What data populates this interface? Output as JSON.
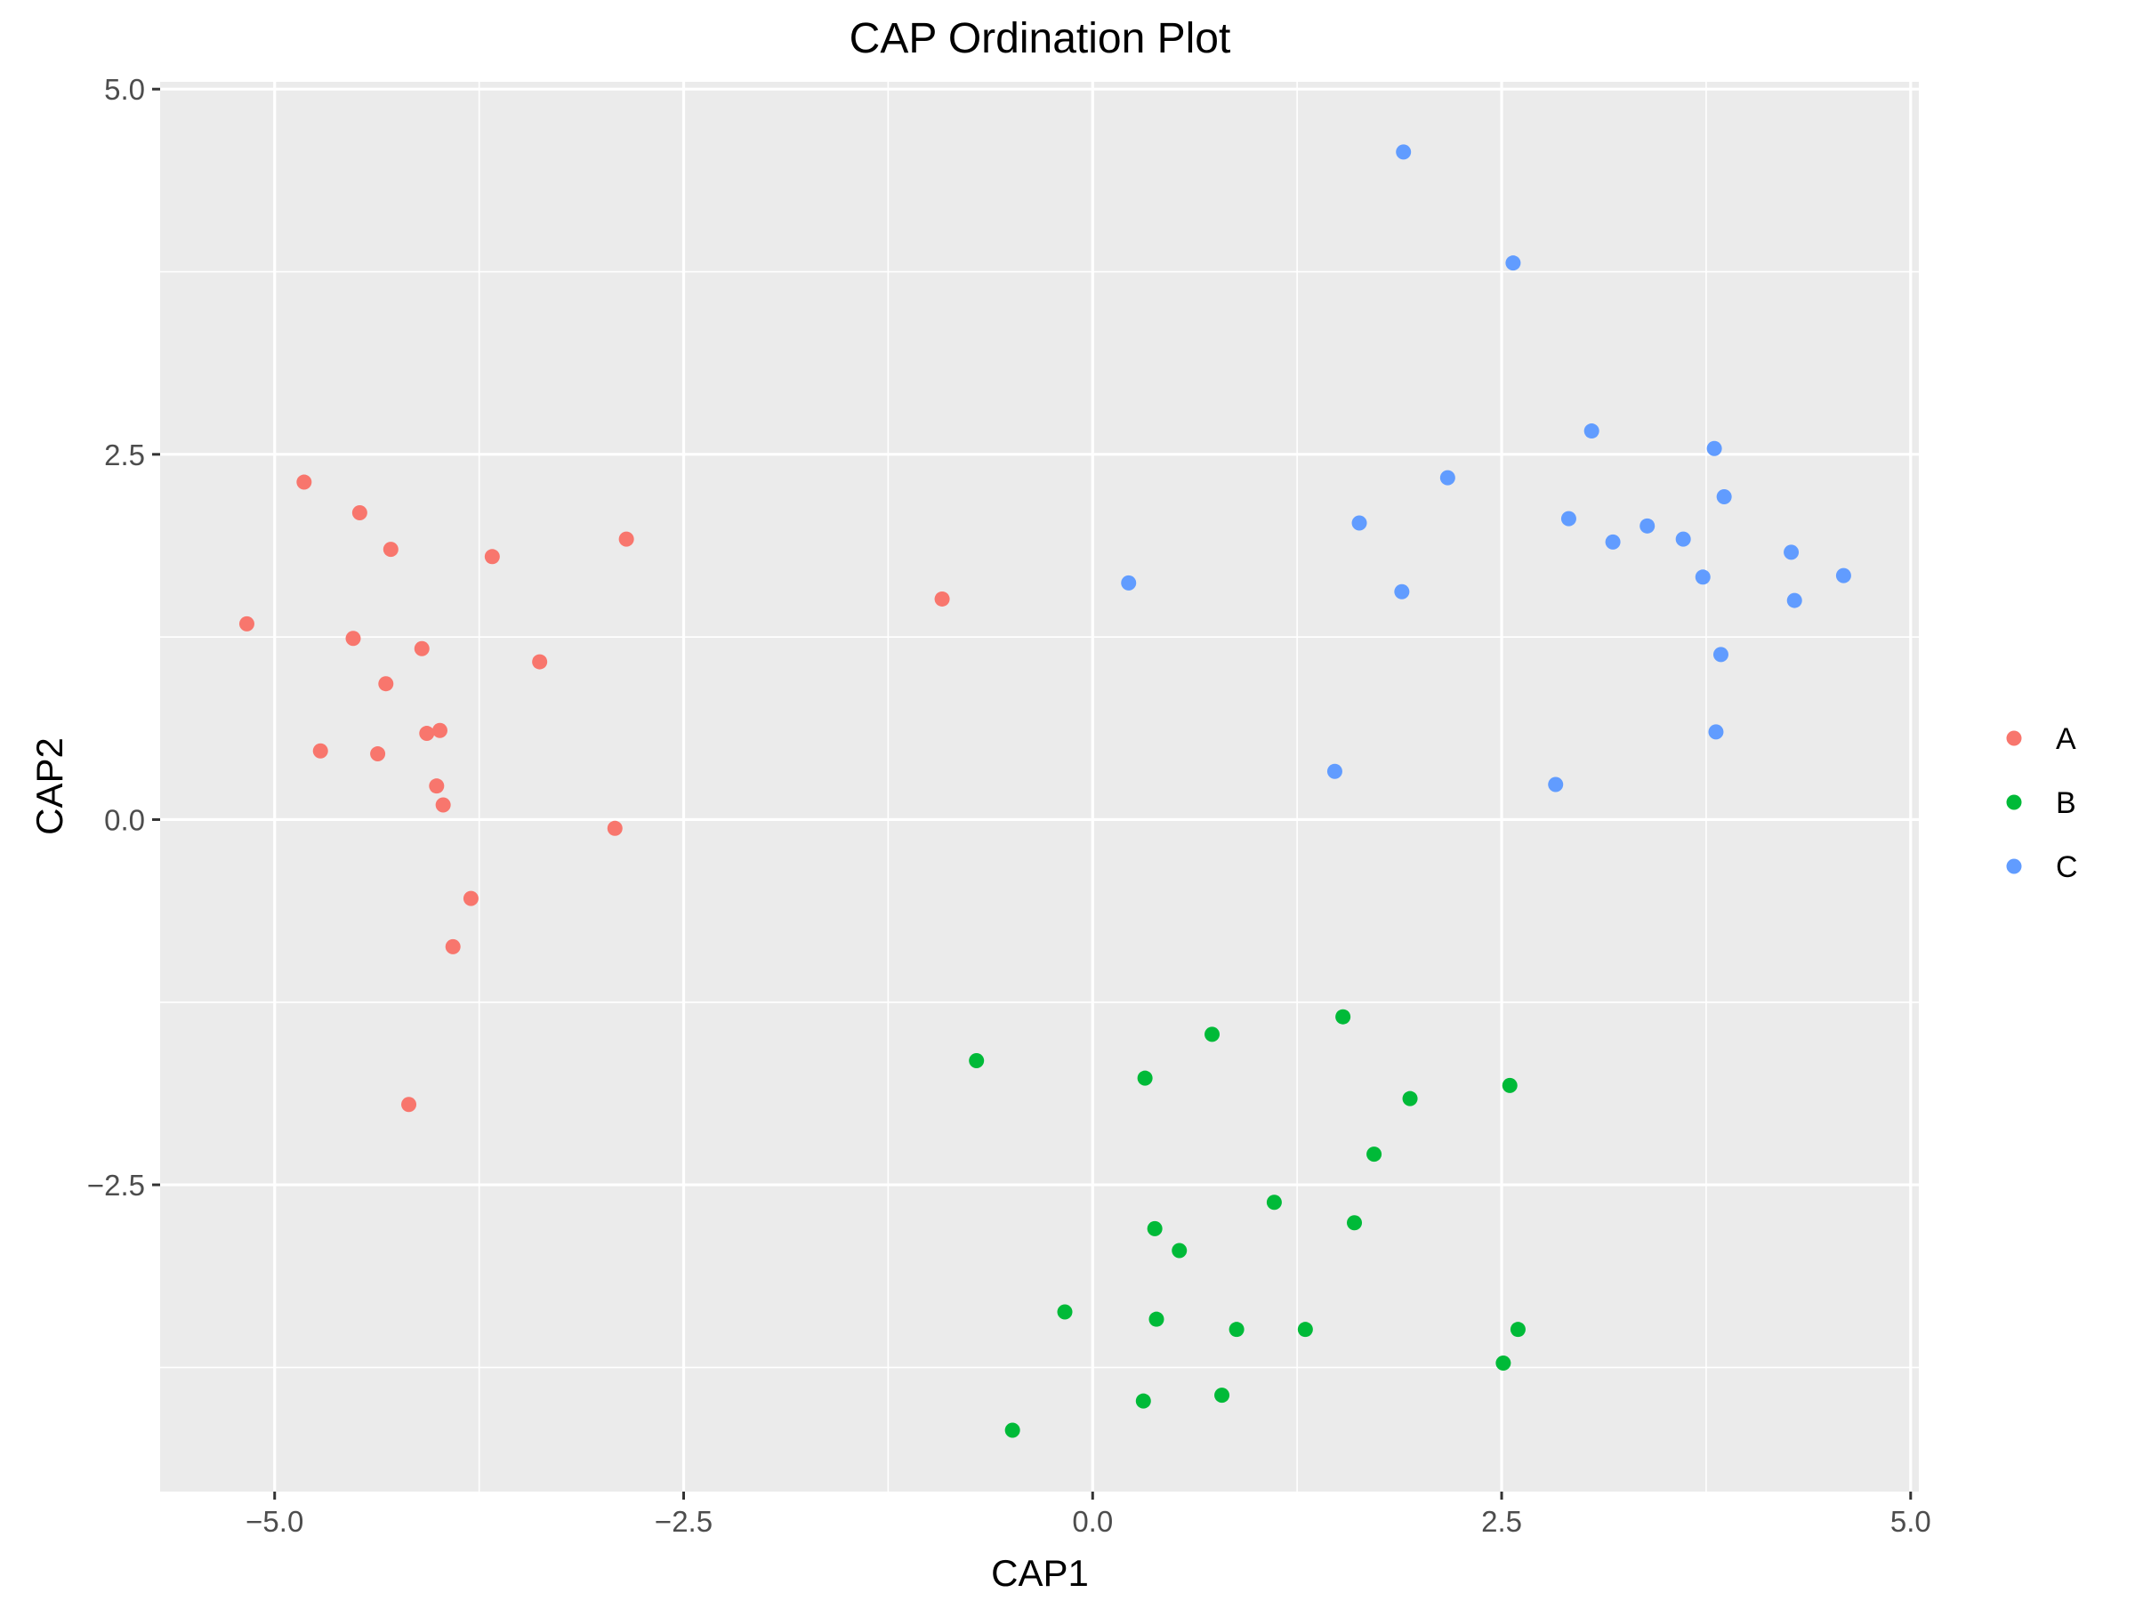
{
  "chart_data": {
    "type": "scatter",
    "title": "CAP Ordination Plot",
    "xlabel": "CAP1",
    "ylabel": "CAP2",
    "xlim": [
      -5.7,
      5.05
    ],
    "ylim": [
      -4.6,
      5.05
    ],
    "x_ticks": [
      {
        "value": -5.0,
        "label": "−5.0"
      },
      {
        "value": -2.5,
        "label": "−2.5"
      },
      {
        "value": 0.0,
        "label": "0.0"
      },
      {
        "value": 2.5,
        "label": "2.5"
      },
      {
        "value": 5.0,
        "label": "5.0"
      }
    ],
    "y_ticks": [
      {
        "value": -2.5,
        "label": "−2.5"
      },
      {
        "value": 0.0,
        "label": "0.0"
      },
      {
        "value": 2.5,
        "label": "2.5"
      },
      {
        "value": 5.0,
        "label": "5.0"
      }
    ],
    "grid": true,
    "legend_position": "right",
    "series": [
      {
        "name": "A",
        "color": "#F8766D",
        "points": [
          [
            -4.82,
            2.31
          ],
          [
            -4.48,
            2.1
          ],
          [
            -4.29,
            1.85
          ],
          [
            -5.17,
            1.34
          ],
          [
            -3.67,
            1.8
          ],
          [
            -2.85,
            1.92
          ],
          [
            -4.52,
            1.24
          ],
          [
            -4.1,
            1.17
          ],
          [
            -3.38,
            1.08
          ],
          [
            -4.32,
            0.93
          ],
          [
            -4.72,
            0.47
          ],
          [
            -4.37,
            0.45
          ],
          [
            -4.07,
            0.59
          ],
          [
            -3.99,
            0.61
          ],
          [
            -4.01,
            0.23
          ],
          [
            -3.97,
            0.1
          ],
          [
            -2.92,
            -0.06
          ],
          [
            -3.8,
            -0.54
          ],
          [
            -3.91,
            -0.87
          ],
          [
            -4.18,
            -1.95
          ],
          [
            -0.92,
            1.51
          ]
        ]
      },
      {
        "name": "B",
        "color": "#00BA38",
        "points": [
          [
            -0.71,
            -1.65
          ],
          [
            0.32,
            -1.77
          ],
          [
            0.73,
            -1.47
          ],
          [
            1.53,
            -1.35
          ],
          [
            1.94,
            -1.91
          ],
          [
            2.55,
            -1.82
          ],
          [
            1.72,
            -2.29
          ],
          [
            1.11,
            -2.62
          ],
          [
            0.38,
            -2.8
          ],
          [
            0.53,
            -2.95
          ],
          [
            1.6,
            -2.76
          ],
          [
            -0.17,
            -3.37
          ],
          [
            0.39,
            -3.42
          ],
          [
            0.88,
            -3.49
          ],
          [
            1.3,
            -3.49
          ],
          [
            2.6,
            -3.49
          ],
          [
            2.51,
            -3.72
          ],
          [
            0.31,
            -3.98
          ],
          [
            0.79,
            -3.94
          ],
          [
            -0.49,
            -4.18
          ]
        ]
      },
      {
        "name": "C",
        "color": "#619CFF",
        "points": [
          [
            1.9,
            4.57
          ],
          [
            2.57,
            3.81
          ],
          [
            3.05,
            2.66
          ],
          [
            3.8,
            2.54
          ],
          [
            2.17,
            2.34
          ],
          [
            3.86,
            2.21
          ],
          [
            1.63,
            2.03
          ],
          [
            2.91,
            2.06
          ],
          [
            3.39,
            2.01
          ],
          [
            3.18,
            1.9
          ],
          [
            3.61,
            1.92
          ],
          [
            4.27,
            1.83
          ],
          [
            4.59,
            1.67
          ],
          [
            3.73,
            1.66
          ],
          [
            1.89,
            1.56
          ],
          [
            4.29,
            1.5
          ],
          [
            0.22,
            1.62
          ],
          [
            3.84,
            1.13
          ],
          [
            3.81,
            0.6
          ],
          [
            1.48,
            0.33
          ],
          [
            2.83,
            0.24
          ]
        ]
      }
    ]
  }
}
